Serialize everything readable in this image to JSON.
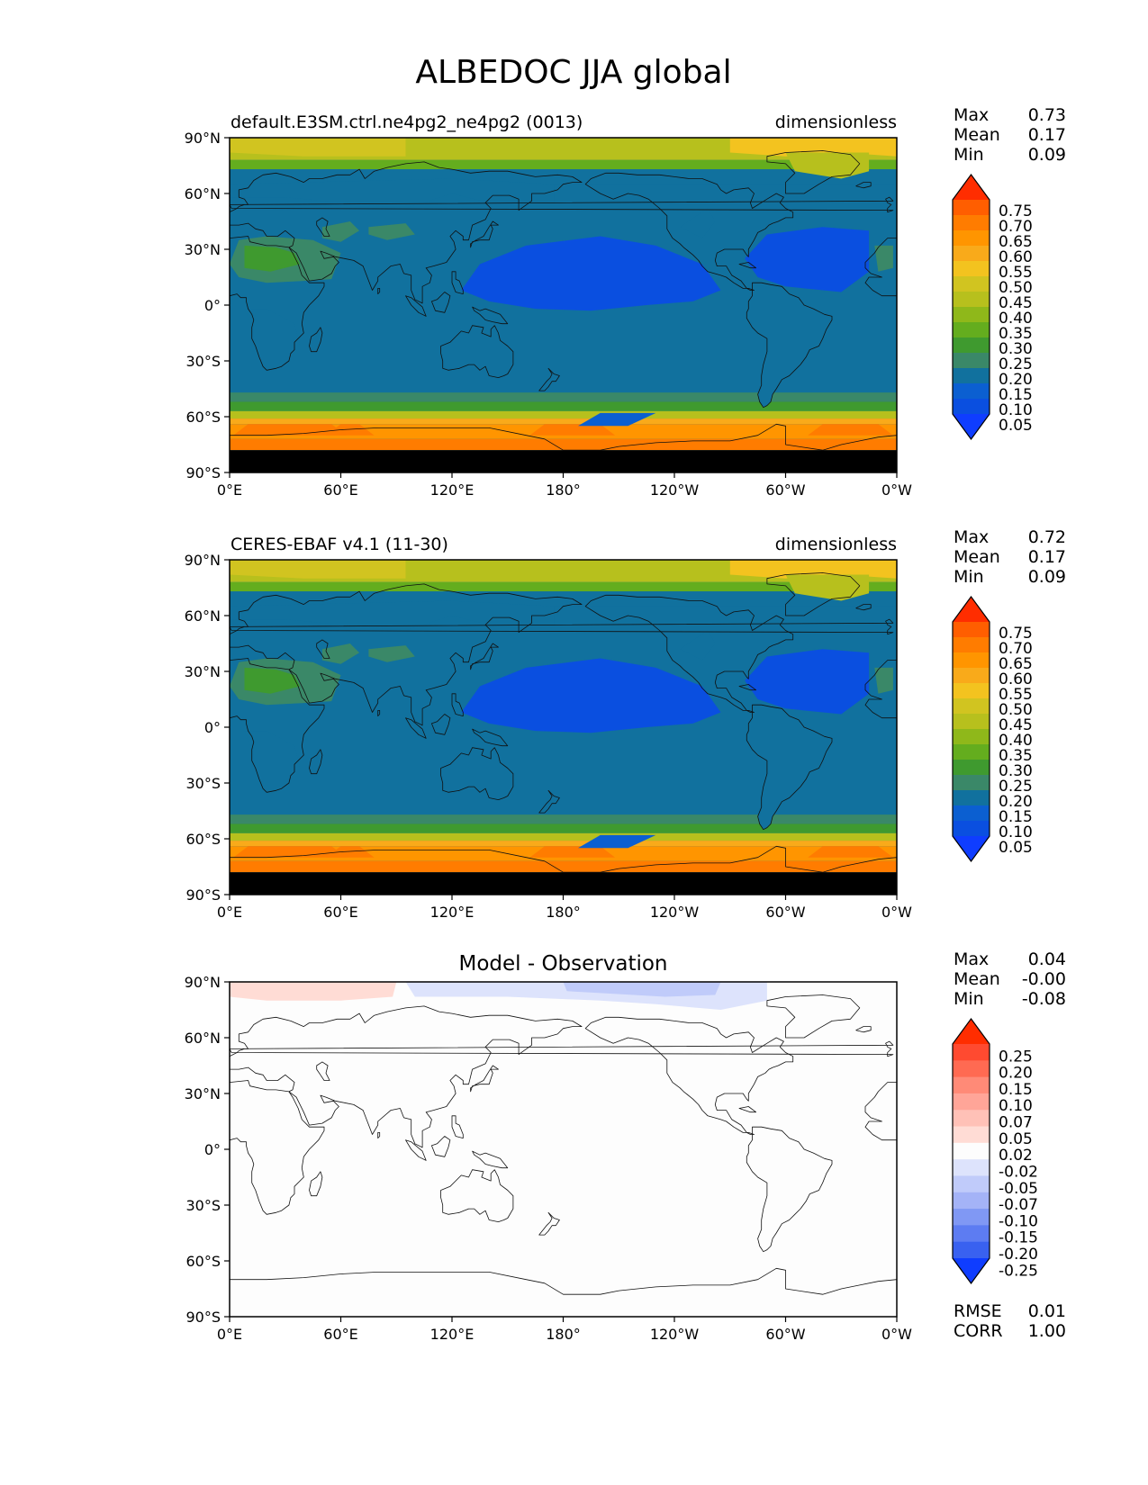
{
  "figure": {
    "title": "ALBEDOC JJA global"
  },
  "axes": {
    "lat_ticks": [
      "90°N",
      "60°N",
      "30°N",
      "0°",
      "30°S",
      "60°S",
      "90°S"
    ],
    "lon_ticks": [
      "0°E",
      "60°E",
      "120°E",
      "180°",
      "120°W",
      "60°W",
      "0°W"
    ]
  },
  "panels": [
    {
      "id": "test",
      "left_title": "default.E3SM.ctrl.ne4pg2_ne4pg2 (0013)",
      "right_title": "dimensionless",
      "center_title": "",
      "stats": [
        [
          "Max",
          "0.73"
        ],
        [
          "Mean",
          "0.17"
        ],
        [
          "Min",
          "0.09"
        ]
      ],
      "colorbar_labels": [
        "0.75",
        "0.70",
        "0.65",
        "0.60",
        "0.55",
        "0.50",
        "0.45",
        "0.40",
        "0.35",
        "0.30",
        "0.25",
        "0.20",
        "0.15",
        "0.10",
        "0.05"
      ],
      "colorbar_colors": [
        "#ff2d00",
        "#ff5e00",
        "#ff7c00",
        "#ff9500",
        "#f9aa1a",
        "#f3c31f",
        "#d1c420",
        "#b7c01d",
        "#8fb81a",
        "#64ad1e",
        "#3f9a2f",
        "#3a8868",
        "#11719e",
        "#0b5fd1",
        "#0a4fe0",
        "#0f3dff"
      ],
      "extras": []
    },
    {
      "id": "reference",
      "left_title": "CERES-EBAF v4.1 (11-30)",
      "right_title": "dimensionless",
      "center_title": "",
      "stats": [
        [
          "Max",
          "0.72"
        ],
        [
          "Mean",
          "0.17"
        ],
        [
          "Min",
          "0.09"
        ]
      ],
      "colorbar_labels": [
        "0.75",
        "0.70",
        "0.65",
        "0.60",
        "0.55",
        "0.50",
        "0.45",
        "0.40",
        "0.35",
        "0.30",
        "0.25",
        "0.20",
        "0.15",
        "0.10",
        "0.05"
      ],
      "colorbar_colors": [
        "#ff2d00",
        "#ff5e00",
        "#ff7c00",
        "#ff9500",
        "#f9aa1a",
        "#f3c31f",
        "#d1c420",
        "#b7c01d",
        "#8fb81a",
        "#64ad1e",
        "#3f9a2f",
        "#3a8868",
        "#11719e",
        "#0b5fd1",
        "#0a4fe0",
        "#0f3dff"
      ],
      "extras": []
    },
    {
      "id": "difference",
      "left_title": "",
      "right_title": "",
      "center_title": "Model - Observation",
      "stats": [
        [
          "Max",
          "0.04"
        ],
        [
          "Mean",
          "-0.00"
        ],
        [
          "Min",
          "-0.08"
        ]
      ],
      "colorbar_labels": [
        "0.25",
        "0.20",
        "0.15",
        "0.10",
        "0.07",
        "0.05",
        "0.02",
        "-0.02",
        "-0.05",
        "-0.07",
        "-0.10",
        "-0.15",
        "-0.20",
        "-0.25"
      ],
      "colorbar_colors": [
        "#ff2d00",
        "#ff4a30",
        "#ff6a52",
        "#ff8a77",
        "#ffa598",
        "#ffc1b7",
        "#ffdcd5",
        "#fdfdfd",
        "#dde3fc",
        "#c0cbfa",
        "#a4b3f7",
        "#8098f4",
        "#5d7cf2",
        "#3961f0",
        "#0f3dff"
      ],
      "extras": [
        [
          "RMSE",
          "0.01"
        ],
        [
          "CORR",
          "1.00"
        ]
      ]
    }
  ]
}
